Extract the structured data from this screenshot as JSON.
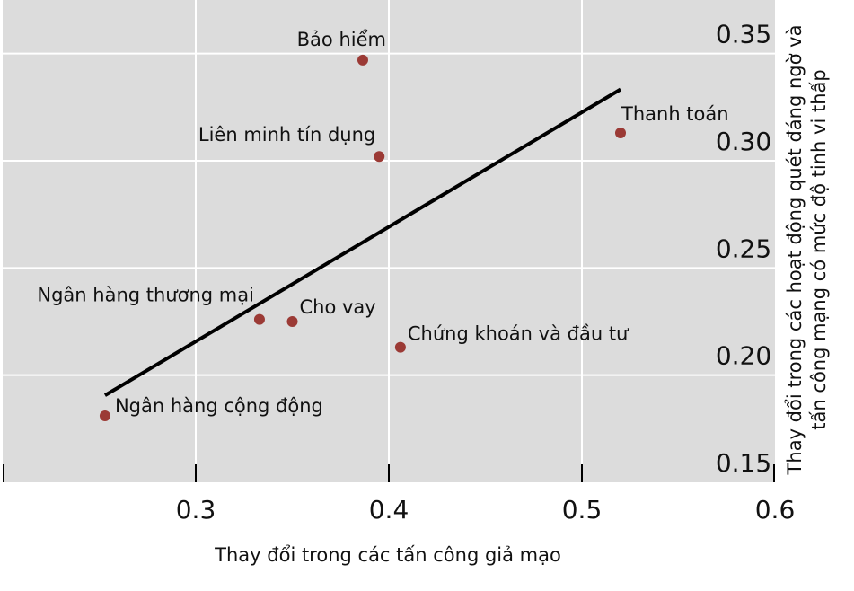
{
  "chart_data": {
    "type": "scatter",
    "x_label": "Thay đổi trong các tấn công giả mạo",
    "y_label": [
      "Thay đổi trong các hoạt động quét đáng ngờ và",
      "tấn công mạng có mức độ tinh vi thấp"
    ],
    "point_labels": [
      "Bảo hiểm",
      "Liên minh tín dụng",
      "Thanh toán",
      "Ngân hàng thương mại",
      "Cho vay",
      "Chứng khoán và đầu tư",
      "Ngân hàng cộng động"
    ],
    "x": [
      0.3865,
      0.395,
      0.52,
      0.333,
      0.35,
      0.406,
      0.253
    ],
    "values": [
      0.347,
      0.302,
      0.313,
      0.226,
      0.225,
      0.213,
      0.181
    ],
    "color": "#9b3a35",
    "trend": {
      "x": [
        0.253,
        0.52
      ],
      "values": [
        0.1906,
        0.3333
      ],
      "color": "#000000"
    },
    "xlim": [
      0.2,
      0.6
    ],
    "xticks": [
      0.3,
      0.4,
      0.5,
      0.6
    ],
    "ylim": [
      0.15,
      0.375
    ],
    "yticks": [
      0.15,
      {
        "value": 0.2,
        "label": "0.20"
      },
      0.25,
      {
        "value": 0.3,
        "label": "0.30"
      },
      0.35
    ],
    "grid": true
  }
}
